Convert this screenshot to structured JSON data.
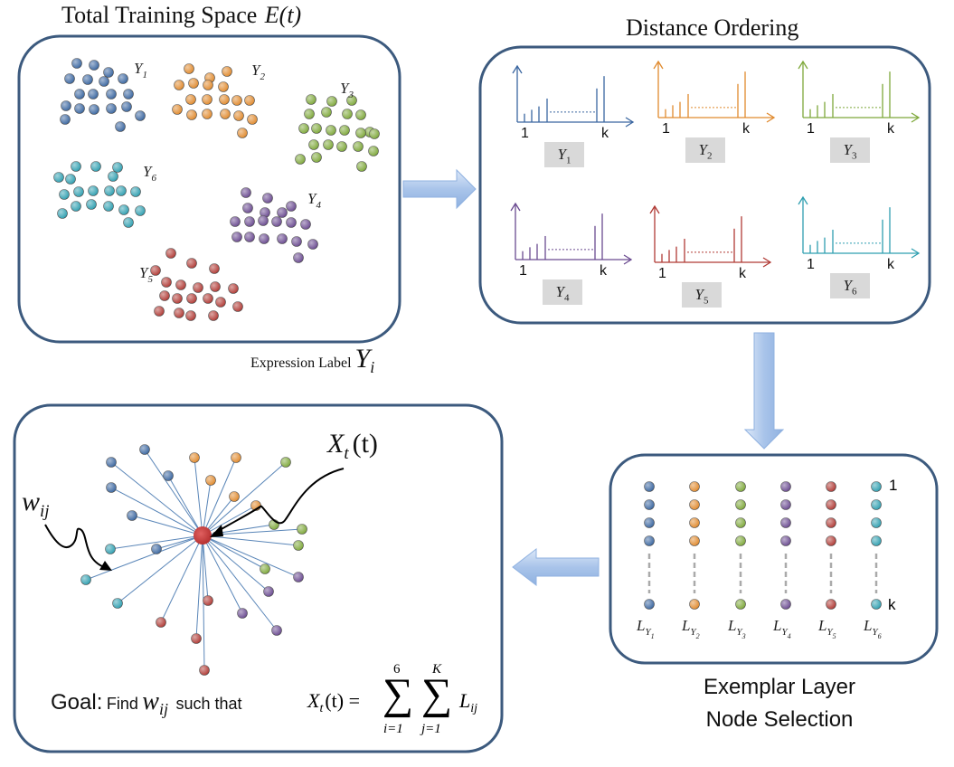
{
  "titles": {
    "training_space": "Total Training Space",
    "training_space_math": "E(t)",
    "distance_ordering": "Distance Ordering",
    "expression_label": "Expression Label",
    "expression_label_math": "Y",
    "expression_label_sub": "i",
    "exemplar_line1": "Exemplar Layer",
    "exemplar_line2": "Node Selection"
  },
  "colors": {
    "Y1": "#3a66a0",
    "Y2": "#e08a2e",
    "Y3": "#7ea83a",
    "Y4": "#6a4a90",
    "Y5": "#b03a35",
    "Y6": "#2f9fb0",
    "panel_border": "#3c5a7e",
    "arrow": "#a9c4ea"
  },
  "clusters": [
    {
      "id": "Y1",
      "label": "Y",
      "sub": "1"
    },
    {
      "id": "Y2",
      "label": "Y",
      "sub": "2"
    },
    {
      "id": "Y3",
      "label": "Y",
      "sub": "3"
    },
    {
      "id": "Y4",
      "label": "Y",
      "sub": "4"
    },
    {
      "id": "Y5",
      "label": "Y",
      "sub": "5"
    },
    {
      "id": "Y6",
      "label": "Y",
      "sub": "6"
    }
  ],
  "distance_charts": [
    {
      "id": "Y1",
      "label": "Y",
      "sub": "1",
      "tick_start": "1",
      "tick_end": "k"
    },
    {
      "id": "Y2",
      "label": "Y",
      "sub": "2",
      "tick_start": "1",
      "tick_end": "k"
    },
    {
      "id": "Y3",
      "label": "Y",
      "sub": "3",
      "tick_start": "1",
      "tick_end": "k"
    },
    {
      "id": "Y4",
      "label": "Y",
      "sub": "4",
      "tick_start": "1",
      "tick_end": "k"
    },
    {
      "id": "Y5",
      "label": "Y",
      "sub": "5",
      "tick_start": "1",
      "tick_end": "k"
    },
    {
      "id": "Y6",
      "label": "Y",
      "sub": "6",
      "tick_start": "1",
      "tick_end": "k"
    }
  ],
  "exemplar": {
    "top_index": "1",
    "bottom_index": "k",
    "layers": [
      {
        "id": "Y1",
        "label": "L",
        "sub": "Y",
        "subsub": "1"
      },
      {
        "id": "Y2",
        "label": "L",
        "sub": "Y",
        "subsub": "2"
      },
      {
        "id": "Y3",
        "label": "L",
        "sub": "Y",
        "subsub": "3"
      },
      {
        "id": "Y4",
        "label": "L",
        "sub": "Y",
        "subsub": "4"
      },
      {
        "id": "Y5",
        "label": "L",
        "sub": "Y",
        "subsub": "5"
      },
      {
        "id": "Y6",
        "label": "L",
        "sub": "Y",
        "subsub": "6"
      }
    ]
  },
  "goal": {
    "word": "Goal:",
    "find": "Find",
    "w": "w",
    "w_sub": "ij",
    "such_that": "such that",
    "x": "X",
    "x_sub": "t",
    "x_arg": "(t) =",
    "sum_outer_top": "6",
    "sum_outer_bottom": "i=1",
    "sum_inner_top": "K",
    "sum_inner_bottom": "j=1",
    "L": "L",
    "L_sub": "ij"
  },
  "graph": {
    "center_label": "X",
    "center_sub": "t",
    "center_arg": "(t)",
    "edge_label": "w",
    "edge_sub": "ij"
  }
}
